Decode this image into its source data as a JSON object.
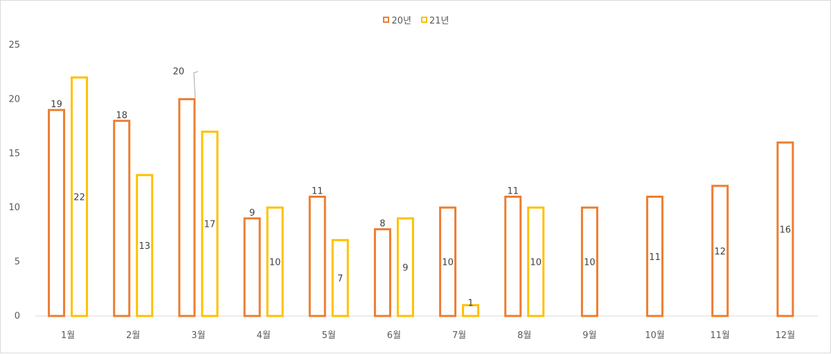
{
  "chart_data": {
    "type": "bar",
    "categories": [
      "1월",
      "2월",
      "3월",
      "4월",
      "5월",
      "6월",
      "7월",
      "8월",
      "9월",
      "10월",
      "11월",
      "12월"
    ],
    "series": [
      {
        "name": "20년",
        "color": "#ED7D31",
        "values": [
          19,
          18,
          20,
          9,
          11,
          8,
          10,
          11,
          10,
          11,
          12,
          16
        ]
      },
      {
        "name": "21년",
        "color": "#FFC000",
        "values": [
          22,
          13,
          17,
          10,
          7,
          9,
          1,
          10,
          null,
          null,
          null,
          null
        ]
      }
    ],
    "title": "",
    "xlabel": "",
    "ylabel": "",
    "ylim": [
      0,
      25
    ],
    "yticks": [
      0,
      5,
      10,
      15,
      20,
      25
    ],
    "grid": false,
    "legend_position": "top-center",
    "data_labels": {
      "20년": [
        "19",
        "18",
        "20",
        "9",
        "11",
        "8",
        "10",
        "11",
        "10",
        "11",
        "12",
        "16"
      ],
      "21년": [
        "22",
        "13",
        "17",
        "10",
        "7",
        "9",
        "1",
        "10",
        "",
        "",
        "",
        ""
      ]
    }
  }
}
